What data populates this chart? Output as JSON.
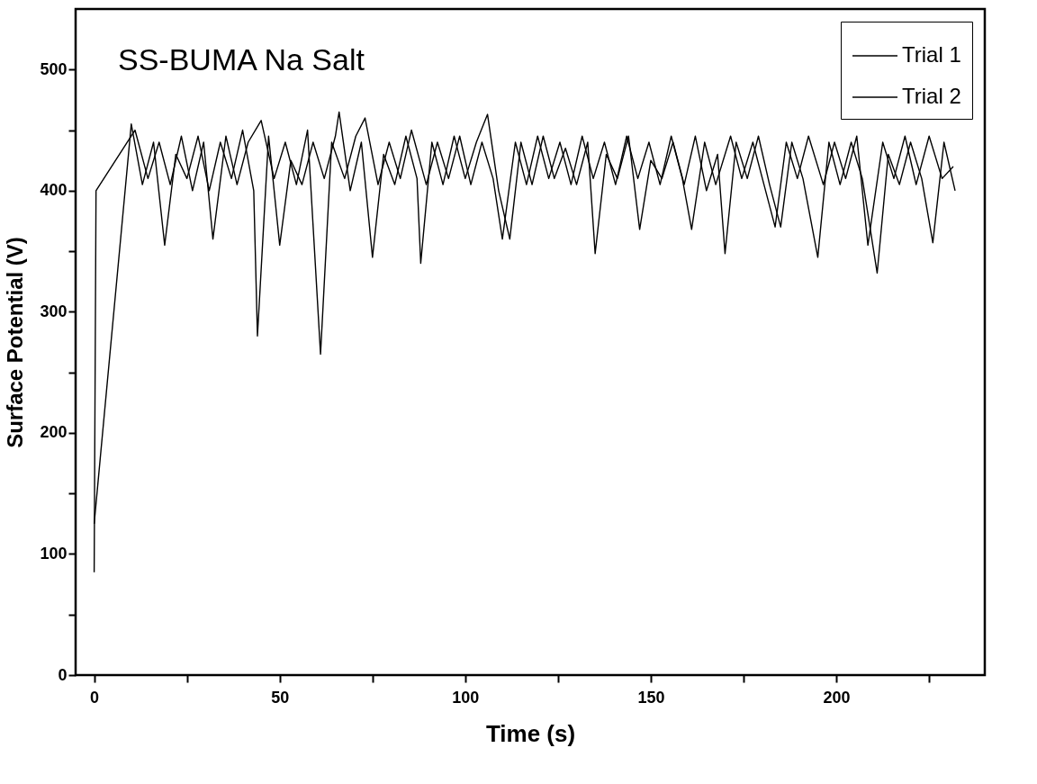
{
  "chart_data": {
    "type": "line",
    "title": "SS-BUMA Na Salt",
    "xlabel": "Time (s)",
    "ylabel": "Surface Potential (V)",
    "xlim": [
      -5,
      240
    ],
    "xticks": [
      0,
      {
        "value": 25,
        "label": null
      },
      50,
      {
        "value": 75,
        "label": null
      },
      100,
      {
        "value": 125,
        "label": null
      },
      150,
      {
        "value": 175,
        "label": null
      },
      200,
      {
        "value": 225,
        "label": null
      }
    ],
    "ylim": [
      0,
      550
    ],
    "yticks": [
      0,
      {
        "value": 50,
        "label": null
      },
      100,
      {
        "value": 150,
        "label": null
      },
      200,
      {
        "value": 250,
        "label": null
      },
      300,
      {
        "value": 350,
        "label": null
      },
      400,
      {
        "value": 450,
        "label": null
      },
      500
    ],
    "grid": false,
    "legend": "top right",
    "series": [
      {
        "name": "Trial 1",
        "color": "#000000",
        "x": [
          0,
          10,
          13,
          16,
          19,
          22,
          25,
          28,
          31,
          34,
          37,
          40,
          43,
          44,
          47,
          50,
          53,
          56,
          59,
          62,
          65,
          66,
          69,
          72,
          75,
          78,
          81,
          84,
          87,
          88,
          91,
          94,
          97,
          100,
          103,
          106,
          109,
          112,
          115,
          118,
          121,
          124,
          127,
          130,
          133,
          135,
          138,
          141,
          144,
          147,
          150,
          153,
          156,
          159,
          162,
          165,
          168,
          170,
          173,
          176,
          179,
          182,
          185,
          188,
          191,
          195,
          198,
          201,
          204,
          207,
          211,
          214,
          217,
          220,
          223,
          226,
          229,
          232
        ],
        "values": [
          125,
          455,
          405,
          440,
          355,
          430,
          410,
          445,
          400,
          440,
          410,
          450,
          400,
          280,
          445,
          355,
          425,
          405,
          440,
          410,
          445,
          465,
          400,
          440,
          345,
          430,
          405,
          445,
          410,
          340,
          440,
          405,
          445,
          410,
          440,
          463,
          400,
          360,
          440,
          405,
          445,
          410,
          435,
          405,
          440,
          348,
          430,
          410,
          445,
          368,
          425,
          410,
          440,
          405,
          445,
          400,
          430,
          348,
          440,
          410,
          445,
          405,
          370,
          440,
          410,
          345,
          440,
          405,
          440,
          410,
          332,
          430,
          405,
          440,
          410,
          357,
          440,
          400
        ]
      },
      {
        "name": "Trial 2",
        "color": "#000000",
        "x": [
          0,
          0.5,
          11,
          14.5,
          17.5,
          20.5,
          23.5,
          26.5,
          29.5,
          32,
          35.5,
          38.5,
          41.5,
          45,
          48.5,
          51.5,
          54.5,
          57.5,
          61,
          64,
          67.5,
          70.5,
          73,
          76.5,
          79.5,
          82.5,
          85.5,
          89.5,
          92.5,
          95.5,
          98.5,
          101.5,
          104.5,
          107.5,
          110,
          113.5,
          116.5,
          119.5,
          122.5,
          125.5,
          128.5,
          131.5,
          134.5,
          137.5,
          140.5,
          143.5,
          146.5,
          149.5,
          152.5,
          155.5,
          158.5,
          161,
          164.5,
          167.5,
          171.5,
          174.5,
          177.5,
          180.5,
          183.5,
          186.5,
          189.5,
          192.5,
          196.5,
          199.5,
          202.5,
          205.5,
          208.5,
          212.5,
          215.5,
          218.5,
          221.5,
          225,
          228.5,
          231.5
        ],
        "values": [
          85,
          400,
          450,
          410,
          440,
          405,
          445,
          400,
          440,
          360,
          445,
          405,
          440,
          458,
          410,
          440,
          405,
          450,
          265,
          440,
          410,
          445,
          460,
          405,
          440,
          410,
          450,
          405,
          440,
          410,
          445,
          405,
          440,
          410,
          360,
          440,
          405,
          445,
          410,
          440,
          405,
          445,
          410,
          440,
          405,
          445,
          410,
          440,
          405,
          445,
          410,
          368,
          440,
          405,
          445,
          410,
          440,
          405,
          370,
          440,
          410,
          445,
          405,
          440,
          410,
          445,
          355,
          440,
          410,
          445,
          405,
          445,
          410,
          420
        ]
      }
    ]
  }
}
